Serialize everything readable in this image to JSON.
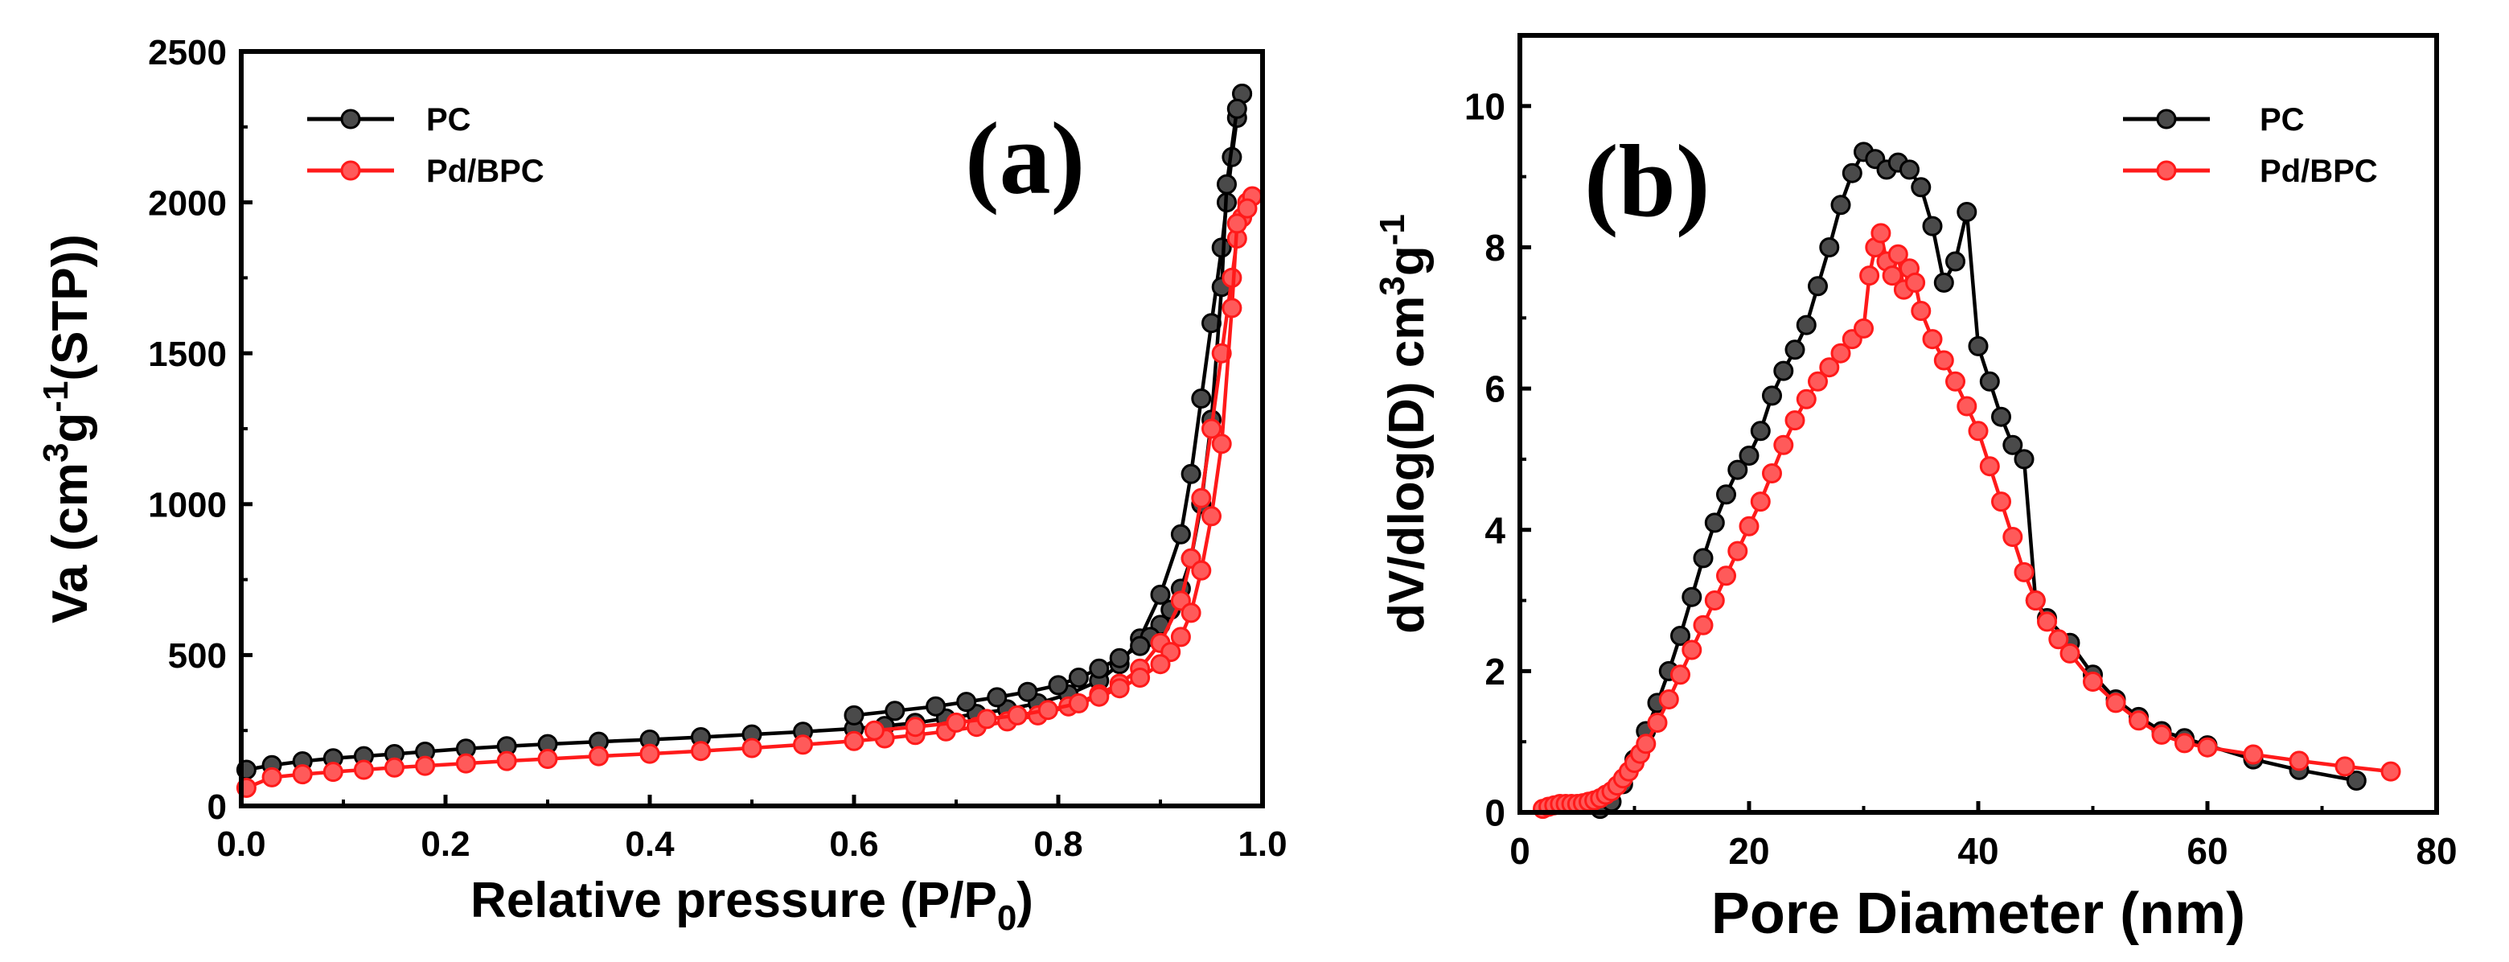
{
  "colors": {
    "pc": "#000000",
    "pc_marker": "#4a4a4a",
    "pdbpc": "#ff1a1a",
    "pdbpc_marker": "#ff5a5a"
  },
  "chart_data": [
    {
      "type": "line",
      "panel_label": "(a)",
      "title": "",
      "xlabel_main": "Relative pressure (P/P",
      "xlabel_sub": "0",
      "xlabel_end": ")",
      "ylabel_pre": "Va (cm",
      "ylabel_sup1": "3",
      "ylabel_mid": "g",
      "ylabel_sup2": "-1",
      "ylabel_post": "(STP))",
      "xlim": [
        0.0,
        1.0
      ],
      "ylim": [
        0,
        2500
      ],
      "xticks": [
        0.0,
        0.2,
        0.4,
        0.6,
        0.8,
        1.0
      ],
      "xtick_labels": [
        "0.0",
        "0.2",
        "0.4",
        "0.6",
        "0.8",
        "1.0"
      ],
      "yticks": [
        0,
        500,
        1000,
        1500,
        2000,
        2500
      ],
      "ytick_labels": [
        "0",
        "500",
        "1000",
        "1500",
        "2000",
        "2500"
      ],
      "legend": [
        "PC",
        "Pd/BPC"
      ],
      "legend_position": "top-left",
      "series": [
        {
          "name": "PC",
          "branch": "adsorption",
          "x": [
            0.005,
            0.03,
            0.06,
            0.09,
            0.12,
            0.15,
            0.18,
            0.22,
            0.26,
            0.3,
            0.35,
            0.4,
            0.45,
            0.5,
            0.55,
            0.6,
            0.63,
            0.66,
            0.69,
            0.72,
            0.75,
            0.78,
            0.81,
            0.84,
            0.86,
            0.88,
            0.9,
            0.92,
            0.93,
            0.94,
            0.95,
            0.96,
            0.965,
            0.97,
            0.975,
            0.98
          ],
          "y": [
            120,
            135,
            148,
            158,
            165,
            172,
            180,
            190,
            198,
            205,
            213,
            220,
            228,
            237,
            246,
            256,
            265,
            275,
            290,
            305,
            320,
            340,
            370,
            415,
            470,
            555,
            700,
            900,
            1100,
            1350,
            1600,
            1850,
            2000,
            2150,
            2280,
            2360
          ]
        },
        {
          "name": "PC",
          "branch": "desorption",
          "x": [
            0.98,
            0.975,
            0.965,
            0.96,
            0.95,
            0.94,
            0.93,
            0.92,
            0.91,
            0.9,
            0.89,
            0.88,
            0.86,
            0.84,
            0.82,
            0.8,
            0.77,
            0.74,
            0.71,
            0.68,
            0.64,
            0.6
          ],
          "y": [
            2360,
            2310,
            2060,
            1720,
            1280,
            1000,
            820,
            720,
            650,
            600,
            560,
            530,
            490,
            455,
            425,
            400,
            378,
            360,
            345,
            330,
            315,
            300
          ]
        },
        {
          "name": "Pd/BPC",
          "branch": "adsorption",
          "x": [
            0.005,
            0.03,
            0.06,
            0.09,
            0.12,
            0.15,
            0.18,
            0.22,
            0.26,
            0.3,
            0.35,
            0.4,
            0.45,
            0.5,
            0.55,
            0.6,
            0.63,
            0.66,
            0.69,
            0.72,
            0.75,
            0.78,
            0.81,
            0.84,
            0.86,
            0.88,
            0.9,
            0.92,
            0.93,
            0.94,
            0.95,
            0.96,
            0.97,
            0.975,
            0.98,
            0.985,
            0.99
          ],
          "y": [
            60,
            95,
            105,
            113,
            120,
            127,
            133,
            141,
            149,
            156,
            165,
            173,
            182,
            192,
            203,
            215,
            224,
            235,
            247,
            262,
            280,
            300,
            330,
            370,
            405,
            455,
            540,
            680,
            820,
            1020,
            1250,
            1500,
            1750,
            1880,
            1950,
            2000,
            2020
          ]
        },
        {
          "name": "Pd/BPC",
          "branch": "desorption",
          "x": [
            0.99,
            0.985,
            0.975,
            0.97,
            0.96,
            0.95,
            0.94,
            0.93,
            0.92,
            0.91,
            0.9,
            0.88,
            0.86,
            0.84,
            0.82,
            0.79,
            0.76,
            0.73,
            0.7,
            0.66,
            0.62
          ],
          "y": [
            2020,
            1980,
            1930,
            1650,
            1200,
            960,
            780,
            640,
            560,
            510,
            470,
            425,
            390,
            362,
            340,
            318,
            300,
            288,
            276,
            262,
            250
          ]
        }
      ]
    },
    {
      "type": "line",
      "panel_label": "(b)",
      "title": "",
      "xlabel": "Pore Diameter (nm)",
      "ylabel_pre": "dV/dlog(D) cm",
      "ylabel_sup1": "3",
      "ylabel_mid": "g",
      "ylabel_sup2": "-1",
      "xlim": [
        0,
        80
      ],
      "ylim": [
        0,
        11
      ],
      "xticks": [
        0,
        20,
        40,
        60,
        80
      ],
      "xtick_labels": [
        "0",
        "20",
        "40",
        "60",
        "80"
      ],
      "yticks": [
        0,
        2,
        4,
        6,
        8,
        10
      ],
      "ytick_labels": [
        "0",
        "2",
        "4",
        "6",
        "8",
        "10"
      ],
      "legend": [
        "PC",
        "Pd/BPC"
      ],
      "legend_position": "top-right",
      "series": [
        {
          "name": "PC",
          "x": [
            7,
            8,
            9,
            10,
            11,
            12,
            13,
            14,
            15,
            16,
            17,
            18,
            19,
            20,
            21,
            22,
            23,
            24,
            25,
            26,
            27,
            28,
            29,
            30,
            31,
            32,
            33,
            34,
            35,
            36,
            37,
            38,
            39,
            40,
            41,
            42,
            43,
            44,
            45,
            46,
            48,
            50,
            52,
            54,
            56,
            58,
            60,
            64,
            68,
            73
          ],
          "y": [
            0.05,
            0.15,
            0.4,
            0.75,
            1.15,
            1.55,
            2.0,
            2.5,
            3.05,
            3.6,
            4.1,
            4.5,
            4.85,
            5.05,
            5.4,
            5.9,
            6.25,
            6.55,
            6.9,
            7.45,
            8.0,
            8.6,
            9.05,
            9.35,
            9.25,
            9.1,
            9.2,
            9.1,
            8.85,
            8.3,
            7.5,
            7.8,
            8.5,
            6.6,
            6.1,
            5.6,
            5.2,
            5.0,
            3.0,
            2.75,
            2.4,
            1.95,
            1.6,
            1.35,
            1.15,
            1.05,
            0.95,
            0.75,
            0.6,
            0.45
          ]
        },
        {
          "name": "Pd/BPC",
          "x": [
            2,
            2.5,
            3,
            3.5,
            4,
            4.5,
            5,
            5.5,
            6,
            6.5,
            7,
            7.5,
            8,
            8.5,
            9,
            9.5,
            10,
            10.5,
            11,
            12,
            13,
            14,
            15,
            16,
            17,
            18,
            19,
            20,
            21,
            22,
            23,
            24,
            25,
            26,
            27,
            28,
            29,
            30,
            30.5,
            31,
            31.5,
            32,
            32.5,
            33,
            33.5,
            34,
            34.5,
            35,
            36,
            37,
            38,
            39,
            40,
            41,
            42,
            43,
            44,
            45,
            46,
            47,
            48,
            50,
            52,
            54,
            56,
            58,
            60,
            64,
            68,
            72,
            76
          ],
          "y": [
            0.05,
            0.08,
            0.1,
            0.12,
            0.12,
            0.12,
            0.12,
            0.13,
            0.15,
            0.17,
            0.2,
            0.25,
            0.3,
            0.38,
            0.48,
            0.58,
            0.7,
            0.83,
            0.97,
            1.27,
            1.6,
            1.95,
            2.3,
            2.65,
            3.0,
            3.35,
            3.7,
            4.05,
            4.4,
            4.8,
            5.2,
            5.55,
            5.85,
            6.1,
            6.3,
            6.5,
            6.7,
            6.85,
            7.6,
            8.0,
            8.2,
            7.8,
            7.6,
            7.9,
            7.4,
            7.7,
            7.5,
            7.1,
            6.7,
            6.4,
            6.1,
            5.75,
            5.4,
            4.9,
            4.4,
            3.9,
            3.4,
            3.0,
            2.7,
            2.45,
            2.25,
            1.85,
            1.55,
            1.3,
            1.1,
            0.98,
            0.92,
            0.82,
            0.73,
            0.65,
            0.58
          ]
        }
      ]
    }
  ]
}
